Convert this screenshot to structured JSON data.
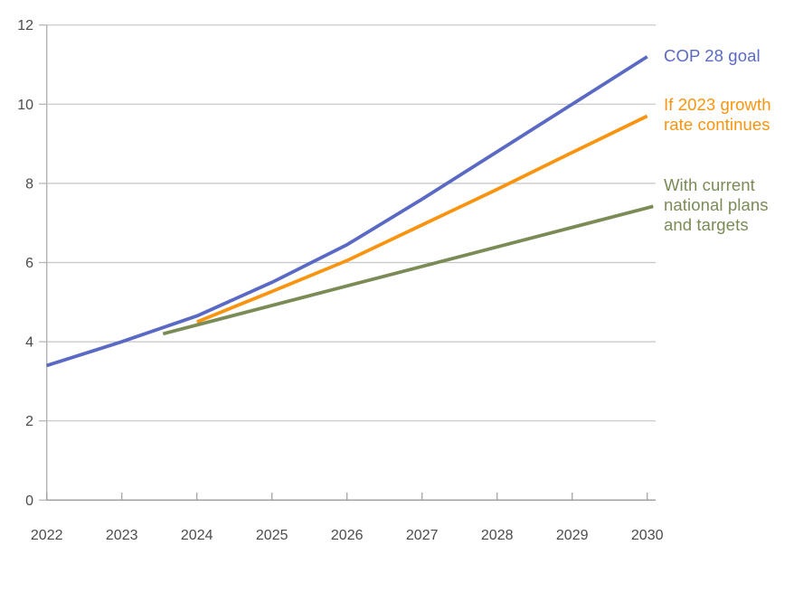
{
  "chart_data": {
    "type": "line",
    "title": "",
    "xlabel": "",
    "ylabel": "",
    "x_ticks": [
      2022,
      2023,
      2024,
      2025,
      2026,
      2027,
      2028,
      2029,
      2030
    ],
    "y_ticks": [
      0,
      2,
      4,
      6,
      8,
      10,
      12
    ],
    "xlim": [
      2022,
      2030.12
    ],
    "ylim": [
      0,
      12
    ],
    "grid": "horizontal",
    "legend_position": "right of line ends",
    "series": [
      {
        "name": "COP 28 goal",
        "label": "COP 28 goal",
        "color": "#5a6ac4",
        "x": [
          2022,
          2023,
          2024,
          2025,
          2026,
          2027,
          2028,
          2029,
          2030
        ],
        "values": [
          3.4,
          4.0,
          4.65,
          5.5,
          6.45,
          7.6,
          8.8,
          10.0,
          11.2
        ]
      },
      {
        "name": "If 2023 growth rate continues",
        "label": "If 2023 growth\nrate continues",
        "color": "#f8940f",
        "x": [
          2024,
          2025,
          2026,
          2027,
          2028,
          2029,
          2030
        ],
        "values": [
          4.5,
          5.27,
          6.05,
          6.95,
          7.85,
          8.78,
          9.7
        ]
      },
      {
        "name": "With current national plans and targets",
        "label": "With current\nnational plans\nand targets",
        "color": "#7a8b55",
        "x": [
          2023.55,
          2030.08
        ],
        "values": [
          4.2,
          7.42
        ]
      }
    ]
  },
  "colors": {
    "tick_label": "#4c4c4c",
    "gridline": "#c6c6c6",
    "y_axis": "#b2b2b2",
    "x_axis": "#9e9e9e"
  }
}
